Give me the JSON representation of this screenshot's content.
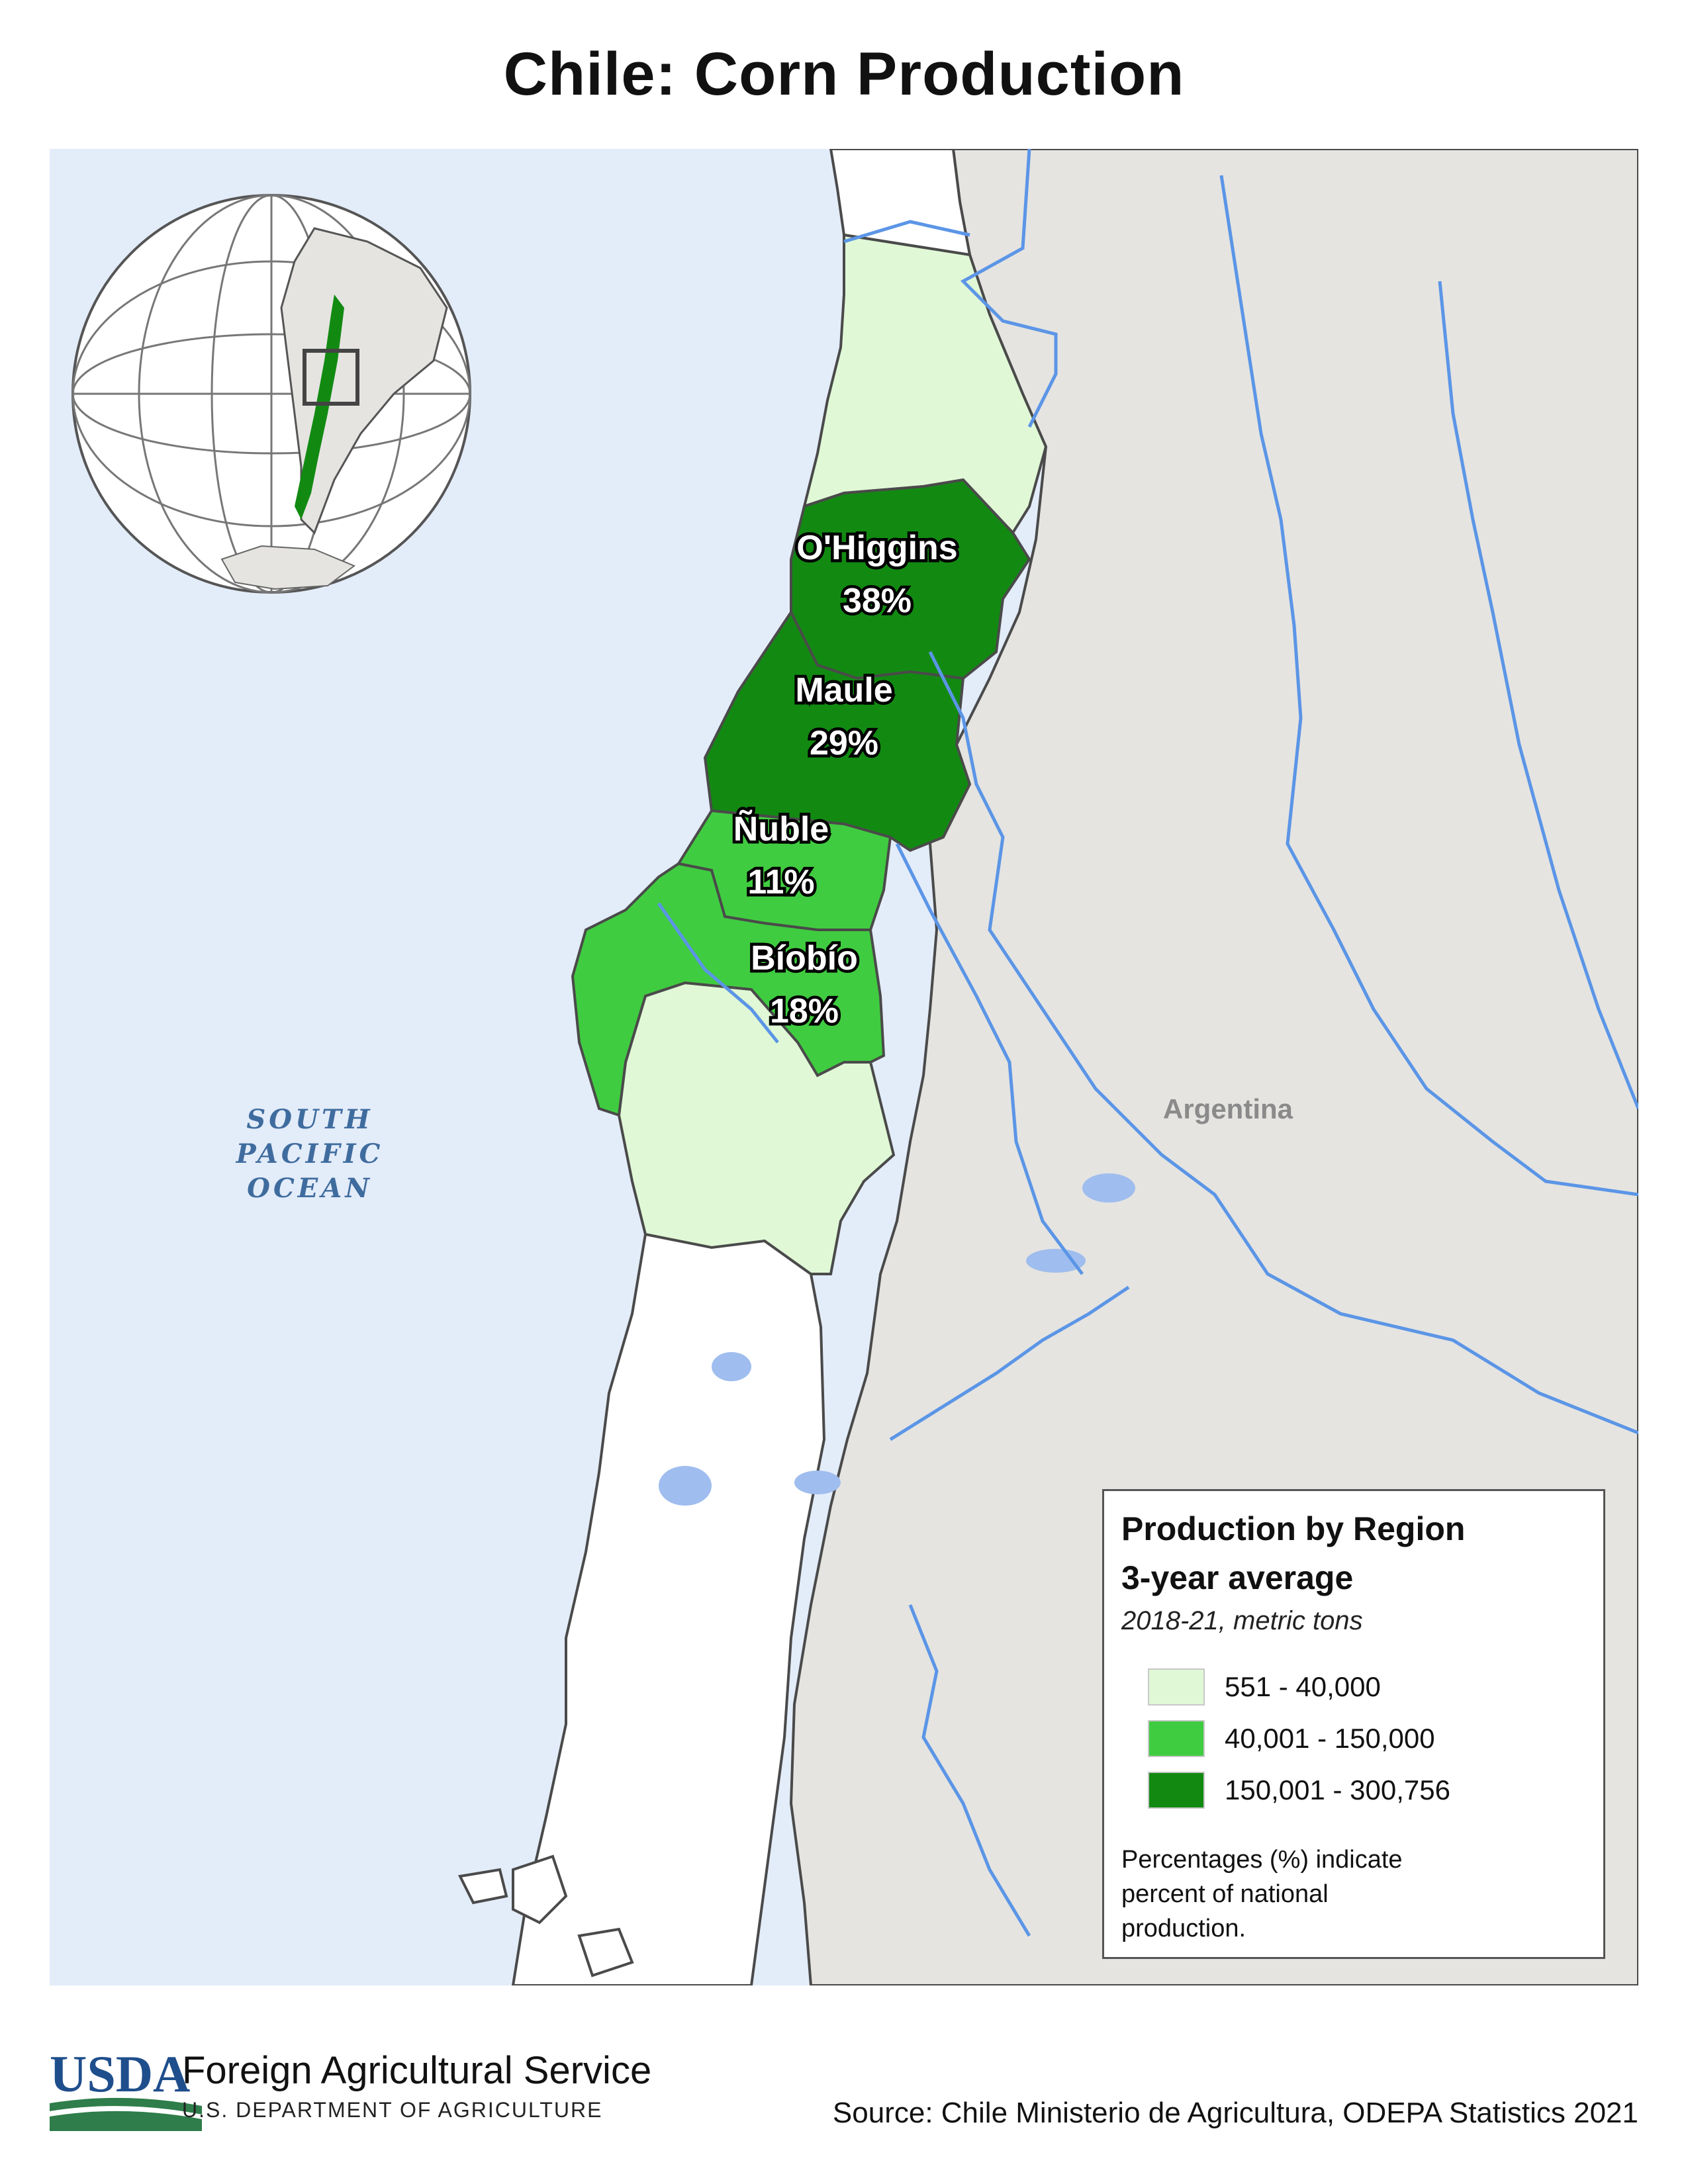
{
  "title": "Chile: Corn Production",
  "map": {
    "ocean_label": [
      "SOUTH",
      "PACIFIC",
      "OCEAN"
    ],
    "country_label": "Argentina",
    "regions": [
      {
        "name": "O'Higgins",
        "percent": "38%",
        "class": "150,001 - 300,756"
      },
      {
        "name": "Maule",
        "percent": "29%",
        "class": "150,001 - 300,756"
      },
      {
        "name": "Ñuble",
        "percent": "11%",
        "class": "40,001 - 150,000"
      },
      {
        "name": "Bíobío",
        "percent": "18%",
        "class": "40,001 - 150,000"
      }
    ],
    "colors": {
      "ocean": "#e3ecf9",
      "argentina": "#e5e4e1",
      "chile_other": "#ffffff",
      "rivers": "#5b95e6",
      "lakes": "#9fbdee",
      "borders": "#4a4a4a"
    }
  },
  "legend": {
    "title_line1": "Production by Region",
    "title_line2": "3-year average",
    "subtitle": "2018-21, metric tons",
    "items": [
      {
        "label": "551 - 40,000",
        "color": "#e0f8d6"
      },
      {
        "label": "40,001 - 150,000",
        "color": "#40cc40"
      },
      {
        "label": "150,001 - 300,756",
        "color": "#128a12"
      }
    ],
    "note": "Percentages (%) indicate percent of national production."
  },
  "footer": {
    "logo_text": "USDA",
    "agency": "Foreign Agricultural Service",
    "department": "U.S. DEPARTMENT OF AGRICULTURE",
    "source": "Source: Chile Ministerio de Agricultura, ODEPA Statistics 2021"
  }
}
